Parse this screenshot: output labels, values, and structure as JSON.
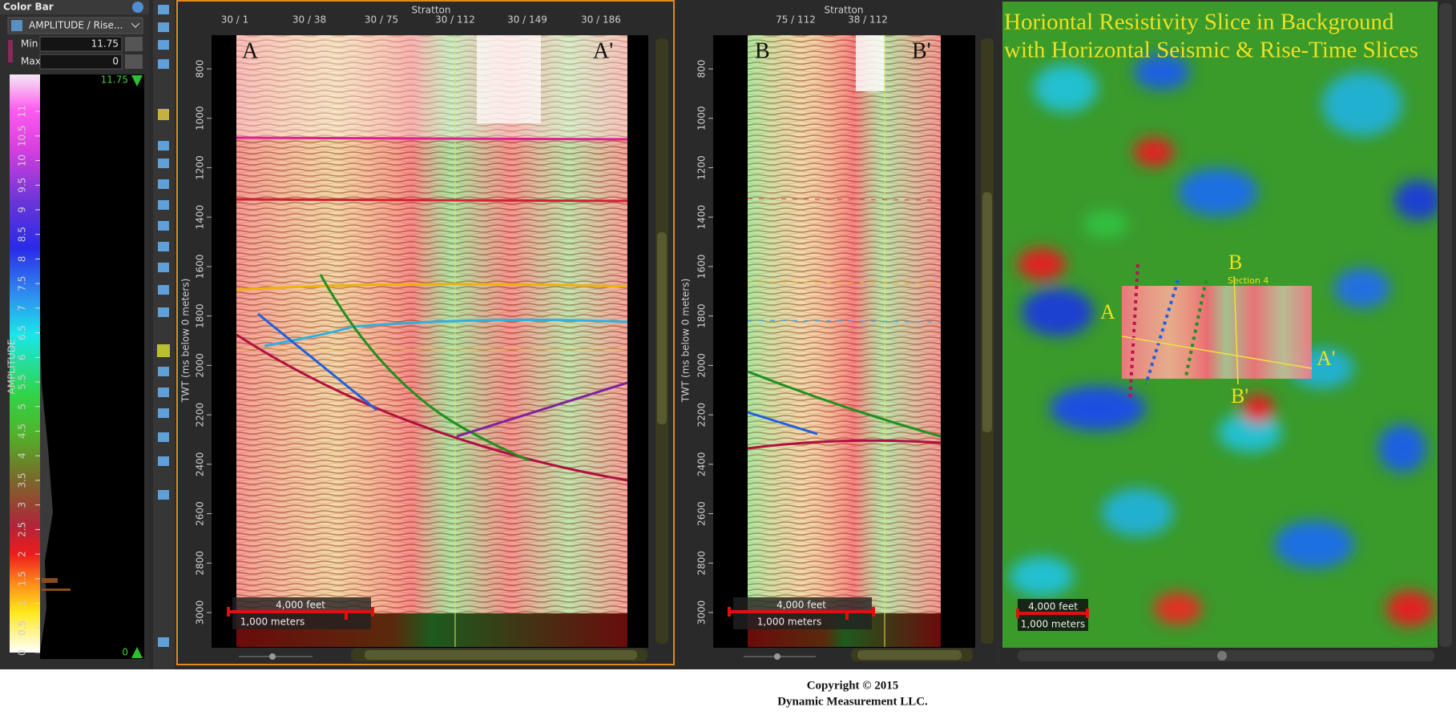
{
  "color_bar": {
    "title": "Color Bar",
    "attribute": "AMPLITUDE / Rise...",
    "min_label": "Min",
    "min": 11.75,
    "max_label": "Max",
    "max": 0,
    "axis_label": "AMPLITUDE",
    "ticks": [
      0,
      0.5,
      1,
      1.5,
      2,
      2.5,
      3,
      3.5,
      4,
      4.5,
      5,
      5.5,
      6,
      6.5,
      7,
      7.5,
      8,
      8.5,
      9,
      9.5,
      10,
      10.5,
      11
    ]
  },
  "section_views": [
    {
      "header": "Stratton",
      "traces": [
        "30 / 1",
        "30 / 38",
        "30 / 75",
        "30 / 112",
        "30 / 149",
        "30 / 186"
      ],
      "depth_label": "TWT (ms below 0 meters)",
      "depth_ticks": [
        800,
        1000,
        1200,
        1400,
        1600,
        1800,
        2000,
        2200,
        2400,
        2600,
        2800,
        3000
      ],
      "left_label": "A",
      "right_label": "A'",
      "scale_feet": "4,000 feet",
      "scale_meters": "1,000 meters"
    },
    {
      "header": "Stratton",
      "traces": [
        "75 / 112",
        "38 / 112"
      ],
      "depth_label": "TWT (ms below 0 meters)",
      "depth_ticks": [
        800,
        1000,
        1200,
        1400,
        1600,
        1800,
        2000,
        2200,
        2400,
        2600,
        2800,
        3000
      ],
      "left_label": "B",
      "right_label": "B'",
      "scale_feet": "4,000 feet",
      "scale_meters": "1,000 meters"
    }
  ],
  "map_view": {
    "title_lines": [
      "Horiontal Resistivity Slice in Background",
      "with Horizontal Seismic & Rise-Time Slices"
    ],
    "labels": [
      "A",
      "A'",
      "B",
      "B'"
    ],
    "section_label": "Section 4",
    "scale_feet": "4,000 feet",
    "scale_meters": "1,000 meters"
  },
  "footer": {
    "copyright": "Copyright  © 2015",
    "company": "Dynamic  Measurement LLC."
  }
}
